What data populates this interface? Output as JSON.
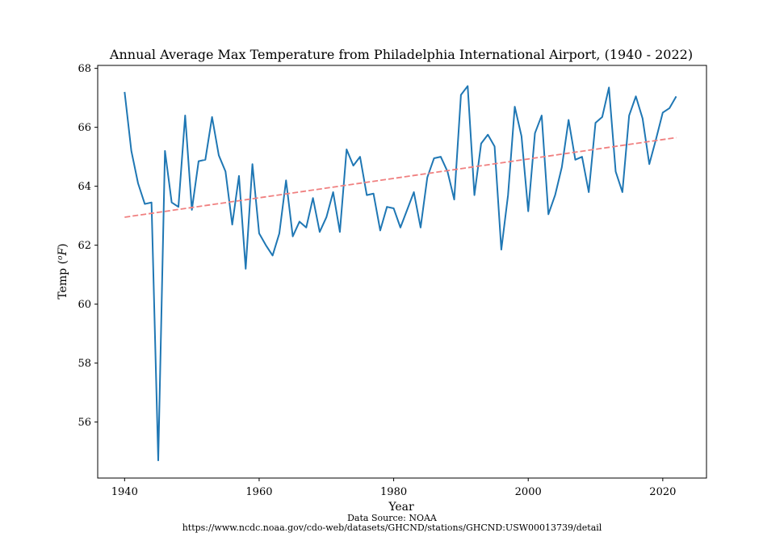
{
  "chart_data": {
    "type": "line",
    "title": "Annual Average Max Temperature from Philadelphia International Airport, (1940 - 2022)",
    "xlabel": "Year",
    "ylabel_base": "Temp (",
    "ylabel_unit": "o",
    "ylabel_var": "F",
    "ylabel_close": ")",
    "xlim": [
      1936,
      2026.5
    ],
    "ylim": [
      54.1,
      68.1
    ],
    "xticks": [
      1940,
      1960,
      1980,
      2000,
      2020
    ],
    "xtick_labels": [
      "1940",
      "1960",
      "1980",
      "2000",
      "2020"
    ],
    "yticks": [
      56,
      58,
      60,
      62,
      64,
      66,
      68
    ],
    "ytick_labels": [
      "56",
      "58",
      "60",
      "62",
      "64",
      "66",
      "68"
    ],
    "series": [
      {
        "name": "Annual Average Max Temperature",
        "color": "#1f77b4",
        "style": "solid",
        "x": [
          1940,
          1941,
          1942,
          1943,
          1944,
          1945,
          1946,
          1947,
          1948,
          1949,
          1950,
          1951,
          1952,
          1953,
          1954,
          1955,
          1956,
          1957,
          1958,
          1959,
          1960,
          1961,
          1962,
          1963,
          1964,
          1965,
          1966,
          1967,
          1968,
          1969,
          1970,
          1971,
          1972,
          1973,
          1974,
          1975,
          1976,
          1977,
          1978,
          1979,
          1980,
          1981,
          1982,
          1983,
          1984,
          1985,
          1986,
          1987,
          1988,
          1989,
          1990,
          1991,
          1992,
          1993,
          1994,
          1995,
          1996,
          1997,
          1998,
          1999,
          2000,
          2001,
          2002,
          2003,
          2004,
          2005,
          2006,
          2007,
          2008,
          2009,
          2010,
          2011,
          2012,
          2013,
          2014,
          2015,
          2016,
          2017,
          2018,
          2019,
          2020,
          2021,
          2022
        ],
        "values": [
          67.2,
          65.2,
          64.1,
          63.4,
          63.45,
          54.7,
          65.2,
          63.45,
          63.3,
          66.4,
          63.2,
          64.85,
          64.9,
          66.35,
          65.05,
          64.5,
          62.7,
          64.35,
          61.2,
          64.75,
          62.4,
          62.0,
          61.65,
          62.4,
          64.2,
          62.3,
          62.8,
          62.6,
          63.6,
          62.45,
          62.95,
          63.8,
          62.45,
          65.25,
          64.7,
          65.0,
          63.7,
          63.75,
          62.5,
          63.3,
          63.25,
          62.6,
          63.2,
          63.8,
          62.6,
          64.3,
          64.95,
          65.0,
          64.5,
          63.55,
          67.1,
          67.4,
          63.7,
          65.45,
          65.75,
          65.35,
          61.85,
          63.7,
          66.7,
          65.7,
          63.15,
          65.8,
          66.4,
          63.05,
          63.7,
          64.65,
          66.25,
          64.9,
          65.0,
          63.8,
          66.15,
          66.35,
          67.35,
          64.5,
          63.8,
          66.4,
          67.05,
          66.3,
          64.75,
          65.6,
          66.5,
          66.65,
          67.05
        ]
      },
      {
        "name": "Trend",
        "color": "#f08080",
        "style": "dashed",
        "x": [
          1940,
          2022
        ],
        "values": [
          62.95,
          65.65
        ]
      }
    ]
  },
  "source": {
    "line1": "Data Source: NOAA",
    "line2": "https://www.ncdc.noaa.gov/cdo-web/datasets/GHCND/stations/GHCND:USW00013739/detail"
  }
}
